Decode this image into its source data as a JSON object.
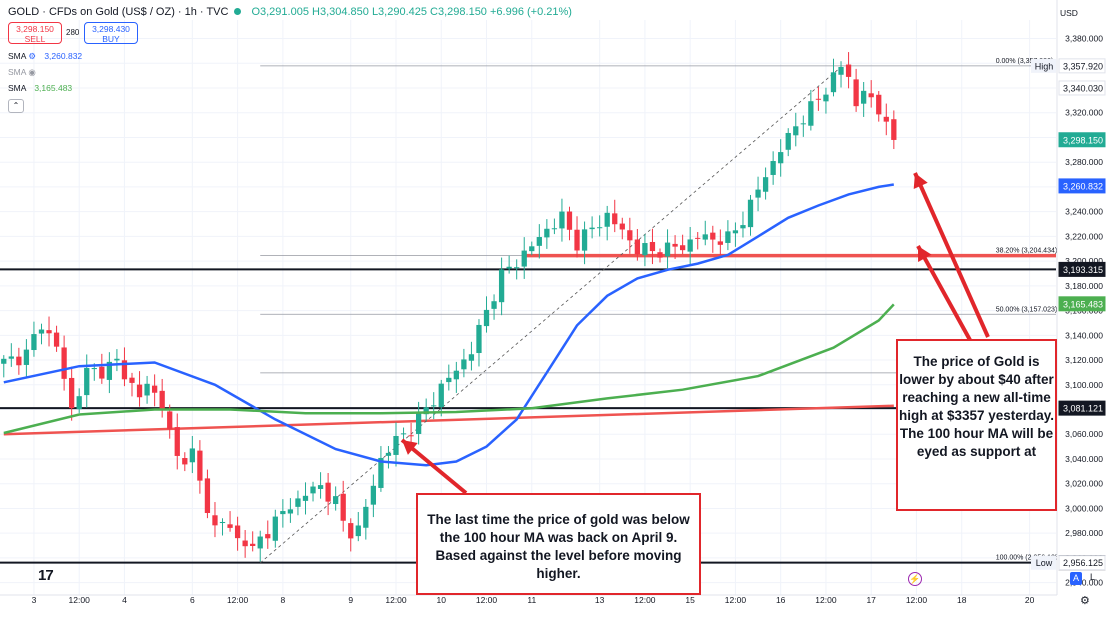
{
  "header": {
    "symbol": "GOLD · CFDs on Gold (US$ / OZ) · 1h · TVC",
    "ohlc": "O3,291.005 H3,304.850 L3,290.425 C3,298.150 +6.996 (+0.21%)"
  },
  "trade": {
    "sell_price": "3,298.150",
    "sell_label": "SELL",
    "spread": "280",
    "buy_price": "3,298.430",
    "buy_label": "BUY"
  },
  "indicators": [
    {
      "name": "SMA",
      "value": "3,260.832",
      "color": "#2962ff"
    },
    {
      "name": "SMA",
      "value": "",
      "color": "#9598a1"
    },
    {
      "name": "SMA",
      "value": "3,165.483",
      "color": "#4caf50"
    }
  ],
  "currency": "USD",
  "collapse_icon": "chevron-up-icon",
  "callouts": {
    "right": "The price of Gold is lower by about $40 after reaching a new all-time high at $3357 yesterday. The 100 hour MA will be eyed as support at",
    "left": "The last time the price of gold was below the 100 hour MA was back on April 9. Based against the level before moving higher."
  },
  "footer": {
    "logo": "17",
    "scale_auto": "A",
    "scale_log": "L",
    "settings_icon": "gear-icon",
    "alert_icon": "lightning-icon"
  },
  "chart_data": {
    "type": "candlestick",
    "title": "",
    "xlabel": "",
    "ylabel": "",
    "ylim": [
      2930,
      3395
    ],
    "y_ticks": [
      2940,
      2960,
      2980,
      3000,
      3020,
      3040,
      3060,
      3080,
      3100,
      3120,
      3140,
      3160,
      3180,
      3200,
      3220,
      3240,
      3260,
      3280,
      3300,
      3320,
      3340,
      3360,
      3380
    ],
    "y_tick_labels": [
      "2,940.000",
      "2,960.000",
      "2,980.000",
      "3,000.000",
      "3,020.000",
      "3,040.000",
      "3,060.000",
      "3,080.000",
      "3,100.000",
      "3,120.000",
      "3,140.000",
      "3,160.000",
      "3,180.000",
      "3,200.000",
      "3,220.000",
      "3,240.000",
      "3,260.000",
      "3,280.000",
      "3,300.000",
      "3,320.000",
      "3,340.000",
      "3,360.000",
      "3,380.000"
    ],
    "x_labels": [
      "3",
      "12:00",
      "4",
      "6",
      "12:00",
      "8",
      "9",
      "12:00",
      "10",
      "12:00",
      "11",
      "13",
      "12:00",
      "15",
      "12:00",
      "16",
      "12:00",
      "17",
      "12:00",
      "18",
      "20"
    ],
    "x_label_index": [
      4,
      10,
      16,
      25,
      31,
      37,
      46,
      52,
      58,
      64,
      70,
      79,
      85,
      91,
      97,
      103,
      109,
      115,
      121,
      127,
      136
    ],
    "bar_count": 140,
    "last_bar_index": 118,
    "close_path": [
      [
        0,
        3118
      ],
      [
        3,
        3125
      ],
      [
        5,
        3150
      ],
      [
        7,
        3130
      ],
      [
        9,
        3080
      ],
      [
        11,
        3110
      ],
      [
        13,
        3112
      ],
      [
        15,
        3118
      ],
      [
        17,
        3100
      ],
      [
        18,
        3090
      ],
      [
        19,
        3100
      ],
      [
        21,
        3085
      ],
      [
        22,
        3060
      ],
      [
        23,
        3040
      ],
      [
        25,
        3045
      ],
      [
        26,
        3020
      ],
      [
        27,
        3000
      ],
      [
        28,
        2985
      ],
      [
        29,
        2990
      ],
      [
        31,
        2975
      ],
      [
        32,
        2975
      ],
      [
        33,
        2965
      ],
      [
        34,
        2975
      ],
      [
        36,
        2990
      ],
      [
        38,
        3002
      ],
      [
        40,
        3012
      ],
      [
        42,
        3018
      ],
      [
        44,
        3005
      ],
      [
        45,
        2988
      ],
      [
        46,
        2982
      ],
      [
        47,
        2983
      ],
      [
        48,
        3000
      ],
      [
        49,
        3020
      ],
      [
        50,
        3040
      ],
      [
        52,
        3055
      ],
      [
        54,
        3065
      ],
      [
        56,
        3080
      ],
      [
        58,
        3098
      ],
      [
        60,
        3112
      ],
      [
        62,
        3128
      ],
      [
        64,
        3160
      ],
      [
        66,
        3188
      ],
      [
        68,
        3200
      ],
      [
        70,
        3212
      ],
      [
        72,
        3226
      ],
      [
        74,
        3235
      ],
      [
        75,
        3225
      ],
      [
        76,
        3215
      ],
      [
        78,
        3226
      ],
      [
        80,
        3237
      ],
      [
        82,
        3224
      ],
      [
        84,
        3210
      ],
      [
        86,
        3208
      ],
      [
        88,
        3210
      ],
      [
        90,
        3212
      ],
      [
        92,
        3220
      ],
      [
        94,
        3218
      ],
      [
        96,
        3218
      ],
      [
        97,
        3225
      ],
      [
        99,
        3245
      ],
      [
        101,
        3270
      ],
      [
        103,
        3290
      ],
      [
        105,
        3310
      ],
      [
        107,
        3323
      ],
      [
        109,
        3340
      ],
      [
        111,
        3357
      ],
      [
        112,
        3350
      ],
      [
        113,
        3325
      ],
      [
        114,
        3340
      ],
      [
        115,
        3328
      ],
      [
        116,
        3320
      ],
      [
        117,
        3318
      ],
      [
        118,
        3298
      ]
    ],
    "series": [
      {
        "name": "SMA",
        "color": "#2962ff",
        "points": [
          [
            0,
            3102
          ],
          [
            10,
            3115
          ],
          [
            20,
            3118
          ],
          [
            28,
            3100
          ],
          [
            36,
            3072
          ],
          [
            44,
            3048
          ],
          [
            50,
            3038
          ],
          [
            56,
            3035
          ],
          [
            60,
            3038
          ],
          [
            64,
            3050
          ],
          [
            68,
            3072
          ],
          [
            72,
            3110
          ],
          [
            76,
            3148
          ],
          [
            80,
            3172
          ],
          [
            84,
            3186
          ],
          [
            88,
            3193
          ],
          [
            92,
            3198
          ],
          [
            96,
            3205
          ],
          [
            100,
            3220
          ],
          [
            104,
            3235
          ],
          [
            108,
            3245
          ],
          [
            112,
            3254
          ],
          [
            116,
            3260
          ],
          [
            118,
            3262
          ]
        ]
      },
      {
        "name": "SMA",
        "color": "#4caf50",
        "points": [
          [
            0,
            3061
          ],
          [
            10,
            3076
          ],
          [
            20,
            3080
          ],
          [
            30,
            3080
          ],
          [
            40,
            3077
          ],
          [
            50,
            3077
          ],
          [
            60,
            3078
          ],
          [
            70,
            3081
          ],
          [
            80,
            3089
          ],
          [
            90,
            3096
          ],
          [
            100,
            3107
          ],
          [
            110,
            3130
          ],
          [
            116,
            3152
          ],
          [
            118,
            3165
          ]
        ]
      }
    ],
    "lines": [
      {
        "name": "trendline",
        "color": "#ef5350",
        "from": [
          0,
          3060
        ],
        "to": [
          118,
          3083
        ]
      },
      {
        "name": "diagonal",
        "color": "#555555",
        "from": [
          34,
          2956
        ],
        "to": [
          111,
          3357
        ]
      }
    ],
    "horizontal_lines": [
      {
        "y": 3081.121,
        "color": "#131722",
        "label": "3,081.121"
      },
      {
        "y": 3193.315,
        "color": "#131722",
        "label": "3,193.315"
      },
      {
        "y": 2956.15,
        "color": "#131722",
        "label": "2,956.150"
      },
      {
        "y": 3204.434,
        "color": "#ef5350",
        "label": ""
      }
    ],
    "fib_levels": [
      {
        "level": "0.00%",
        "price": 3357.92,
        "label": "0.00% (3,357.920)"
      },
      {
        "level": "38.20%",
        "price": 3204.434,
        "label": "38.20% (3,204.434)"
      },
      {
        "level": "50.00%",
        "price": 3157.023,
        "label": "50.00% (3,157.023)"
      },
      {
        "level": "61.80%",
        "price": 3109.612,
        "label": ""
      },
      {
        "level": "100.00%",
        "price": 2956.125,
        "label": "100.00% (2,956.125)"
      }
    ],
    "price_tags": [
      {
        "label": "3,357.920",
        "price": 3357.92,
        "bg": "#ffffff",
        "fg": "#131722",
        "tag": "High"
      },
      {
        "label": "3,340.030",
        "price": 3340.03,
        "bg": "#ffffff",
        "fg": "#131722",
        "tag": ""
      },
      {
        "label": "3,298.150",
        "price": 3298.15,
        "bg": "#22ab94",
        "fg": "#ffffff",
        "tag": ""
      },
      {
        "label": "3,260.832",
        "price": 3260.832,
        "bg": "#2962ff",
        "fg": "#ffffff",
        "tag": ""
      },
      {
        "label": "3,193.315",
        "price": 3193.315,
        "bg": "#131722",
        "fg": "#ffffff",
        "tag": ""
      },
      {
        "label": "3,165.483",
        "price": 3165.483,
        "bg": "#4caf50",
        "fg": "#ffffff",
        "tag": ""
      },
      {
        "label": "3,081.121",
        "price": 3081.121,
        "bg": "#131722",
        "fg": "#ffffff",
        "tag": ""
      },
      {
        "label": "2,956.150",
        "price": 2956.15,
        "bg": "#131722",
        "fg": "#ffffff",
        "tag": ""
      },
      {
        "label": "2,956.125",
        "price": 2956.125,
        "bg": "#ffffff",
        "fg": "#131722",
        "tag": "Low"
      }
    ],
    "arrows": [
      {
        "from": [
          988,
          337
        ],
        "to": [
          915,
          173
        ]
      },
      {
        "from": [
          970,
          340
        ],
        "to": [
          918,
          246
        ]
      },
      {
        "from": [
          466,
          493
        ],
        "to": [
          402,
          440
        ]
      }
    ],
    "colors": {
      "up": "#22ab94",
      "down": "#f23645",
      "grid": "#f0f3fa"
    }
  }
}
